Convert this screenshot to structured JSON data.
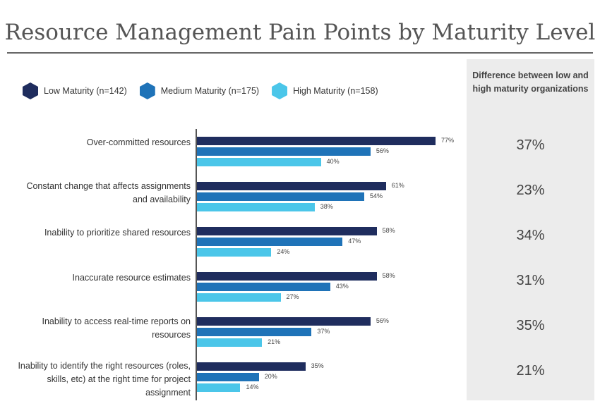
{
  "title": "Resource Management Pain Points by Maturity Level",
  "diff_header": "Difference between low and high maturity organizations",
  "colors": {
    "low": "#1f2d5e",
    "medium": "#1f73b8",
    "high": "#4bc6e9",
    "panel": "#ececec"
  },
  "chart_data": {
    "type": "bar",
    "orientation": "horizontal",
    "categories": [
      "Over-committed resources",
      "Constant change that affects assignments and availability",
      "Inability to prioritize shared resources",
      "Inaccurate resource estimates",
      "Inability to access real-time reports on resources",
      "Inability to identify the right resources (roles, skills, etc) at the right time for project assignment"
    ],
    "series": [
      {
        "name": "Low Maturity (n=142)",
        "color": "#1f2d5e",
        "values": [
          77,
          61,
          58,
          58,
          56,
          35
        ],
        "labels": [
          "77%",
          "61%",
          "58%",
          "58%",
          "56%",
          "35%"
        ]
      },
      {
        "name": "Medium Maturity (n=175)",
        "color": "#1f73b8",
        "values": [
          56,
          54,
          47,
          43,
          37,
          20
        ],
        "labels": [
          "56%",
          "54%",
          "47%",
          "43%",
          "37%",
          "20%"
        ]
      },
      {
        "name": "High Maturity (n=158)",
        "color": "#4bc6e9",
        "values": [
          40,
          38,
          24,
          27,
          21,
          14
        ],
        "labels": [
          "40%",
          "38%",
          "24%",
          "27%",
          "21%",
          "14%"
        ]
      }
    ],
    "differences": [
      "37%",
      "23%",
      "34%",
      "31%",
      "35%",
      "21%"
    ],
    "xlim": [
      0,
      100
    ],
    "grid": false,
    "legend_position": "top-left"
  }
}
